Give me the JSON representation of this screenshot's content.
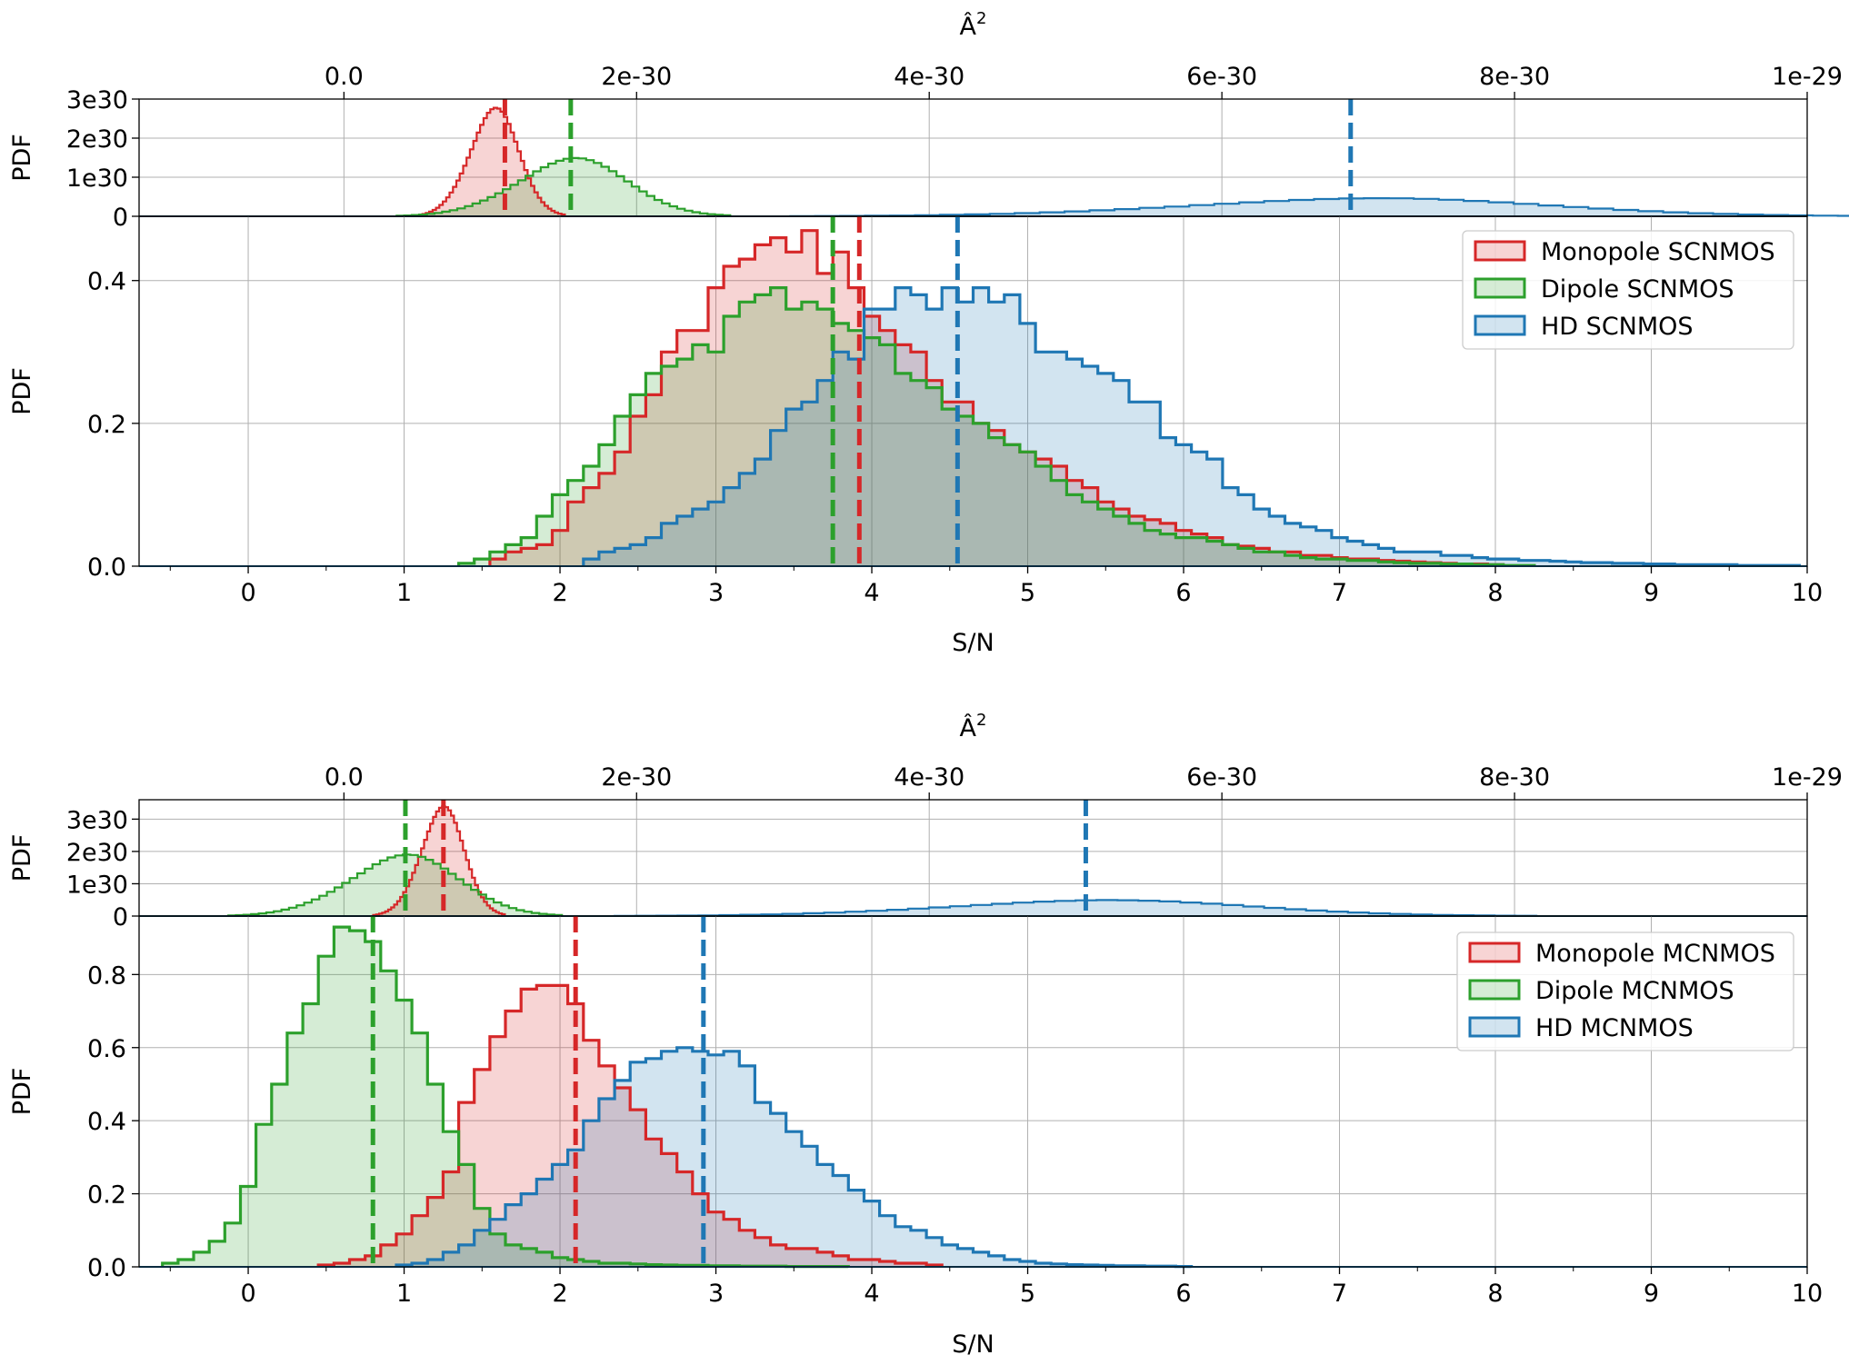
{
  "chart_data": [
    {
      "type": "histogram",
      "title": "",
      "top_xlabel": "Â²",
      "top_xlabel_base": "Â",
      "top_xlabel_sup": "2",
      "top_ylabel": "PDF",
      "top_xticks": [
        "0.0",
        "2e-30",
        "4e-30",
        "6e-30",
        "8e-30",
        "1e-29"
      ],
      "top_yticks": [
        "0",
        "1e30",
        "2e30",
        "3e30"
      ],
      "xlabel": "S/N",
      "ylabel": "PDF",
      "xticks": [
        "0",
        "1",
        "2",
        "3",
        "4",
        "5",
        "6",
        "7",
        "8",
        "9",
        "10"
      ],
      "yticks": [
        "0.0",
        "0.2",
        "0.4"
      ],
      "xlim": [
        -0.7,
        10
      ],
      "ylim": [
        0,
        0.49
      ],
      "top_xlim": [
        -1.4e-30,
        1e-29
      ],
      "top_ylim": [
        0,
        3e+30
      ],
      "grid": true,
      "legend_position": "upper right",
      "series": [
        {
          "name": "Monopole SCNMOS",
          "color": "#d62728",
          "median": 3.92,
          "top_median": 1.1e-30,
          "top_center": 1e-30,
          "top_peak": 2.7e+30,
          "top_width": 1.7e-31,
          "x": [
            1.6,
            1.7,
            1.8,
            1.9,
            2.0,
            2.1,
            2.2,
            2.3,
            2.4,
            2.5,
            2.6,
            2.7,
            2.8,
            2.9,
            3.0,
            3.1,
            3.2,
            3.3,
            3.4,
            3.5,
            3.6,
            3.7,
            3.8,
            3.9,
            4.0,
            4.1,
            4.2,
            4.3,
            4.4,
            4.5,
            4.6,
            4.7,
            4.8,
            4.9,
            5.0,
            5.1,
            5.2,
            5.3,
            5.4,
            5.5,
            5.6,
            5.7,
            5.8,
            5.9,
            6.0,
            6.1,
            6.2,
            6.3,
            6.4,
            6.5,
            6.6,
            6.7,
            6.8,
            6.9,
            7.0,
            7.1,
            7.2,
            7.3,
            7.4,
            7.5,
            7.6,
            7.7,
            7.8,
            7.9,
            8.0
          ],
          "values": [
            0.01,
            0.02,
            0.025,
            0.03,
            0.05,
            0.09,
            0.11,
            0.13,
            0.16,
            0.21,
            0.24,
            0.3,
            0.33,
            0.33,
            0.39,
            0.42,
            0.43,
            0.45,
            0.46,
            0.44,
            0.47,
            0.41,
            0.44,
            0.39,
            0.35,
            0.33,
            0.31,
            0.3,
            0.26,
            0.23,
            0.23,
            0.2,
            0.19,
            0.17,
            0.16,
            0.15,
            0.14,
            0.12,
            0.11,
            0.09,
            0.08,
            0.07,
            0.065,
            0.06,
            0.05,
            0.045,
            0.04,
            0.03,
            0.028,
            0.025,
            0.02,
            0.02,
            0.015,
            0.015,
            0.012,
            0.01,
            0.01,
            0.008,
            0.007,
            0.006,
            0.005,
            0.004,
            0.003,
            0.003,
            0.002
          ]
        },
        {
          "name": "Dipole SCNMOS",
          "color": "#2ca02c",
          "median": 3.75,
          "top_median": 1.55e-30,
          "top_center": 1.5e-30,
          "top_peak": 1.45e+30,
          "top_width": 3.8e-31,
          "x": [
            1.4,
            1.5,
            1.6,
            1.7,
            1.8,
            1.9,
            2.0,
            2.1,
            2.2,
            2.3,
            2.4,
            2.5,
            2.6,
            2.7,
            2.8,
            2.9,
            3.0,
            3.1,
            3.2,
            3.3,
            3.4,
            3.5,
            3.6,
            3.7,
            3.8,
            3.9,
            4.0,
            4.1,
            4.2,
            4.3,
            4.4,
            4.5,
            4.6,
            4.7,
            4.8,
            4.9,
            5.0,
            5.1,
            5.2,
            5.3,
            5.4,
            5.5,
            5.6,
            5.7,
            5.8,
            5.9,
            6.0,
            6.1,
            6.2,
            6.3,
            6.4,
            6.5,
            6.6,
            6.7,
            6.8,
            6.9,
            7.0,
            7.1,
            7.2,
            7.3,
            7.4,
            7.5,
            7.6,
            7.7,
            7.8,
            7.9,
            8.0,
            8.1,
            8.2
          ],
          "values": [
            0.004,
            0.01,
            0.02,
            0.03,
            0.04,
            0.07,
            0.1,
            0.12,
            0.14,
            0.17,
            0.21,
            0.24,
            0.27,
            0.28,
            0.29,
            0.31,
            0.3,
            0.35,
            0.37,
            0.38,
            0.39,
            0.36,
            0.37,
            0.36,
            0.34,
            0.33,
            0.32,
            0.31,
            0.27,
            0.26,
            0.25,
            0.22,
            0.21,
            0.2,
            0.18,
            0.17,
            0.16,
            0.14,
            0.12,
            0.1,
            0.09,
            0.08,
            0.07,
            0.06,
            0.05,
            0.045,
            0.04,
            0.04,
            0.035,
            0.03,
            0.025,
            0.02,
            0.02,
            0.015,
            0.012,
            0.01,
            0.01,
            0.008,
            0.008,
            0.006,
            0.005,
            0.004,
            0.004,
            0.003,
            0.003,
            0.002,
            0.002,
            0.001,
            0.001
          ]
        },
        {
          "name": "HD SCNMOS",
          "color": "#1f77b4",
          "median": 4.55,
          "top_median": 6.88e-30,
          "top_center": 6.8e-30,
          "top_peak": 4.5e+29,
          "top_width": 1.25e-30,
          "x": [
            2.2,
            2.3,
            2.4,
            2.5,
            2.6,
            2.7,
            2.8,
            2.9,
            3.0,
            3.1,
            3.2,
            3.3,
            3.4,
            3.5,
            3.6,
            3.7,
            3.8,
            3.9,
            4.0,
            4.1,
            4.2,
            4.3,
            4.4,
            4.5,
            4.6,
            4.7,
            4.8,
            4.9,
            5.0,
            5.1,
            5.2,
            5.3,
            5.4,
            5.5,
            5.6,
            5.7,
            5.8,
            5.9,
            6.0,
            6.1,
            6.2,
            6.3,
            6.4,
            6.5,
            6.6,
            6.7,
            6.8,
            6.9,
            7.0,
            7.1,
            7.2,
            7.3,
            7.4,
            7.5,
            7.6,
            7.7,
            7.8,
            7.9,
            8.0,
            8.1,
            8.2,
            8.3,
            8.4,
            8.5,
            8.6,
            8.7,
            8.8,
            8.9,
            9.0,
            9.1,
            9.2,
            9.3,
            9.4,
            9.5,
            9.6,
            9.7,
            9.8,
            9.9
          ],
          "values": [
            0.01,
            0.02,
            0.025,
            0.03,
            0.04,
            0.06,
            0.07,
            0.08,
            0.09,
            0.11,
            0.13,
            0.15,
            0.19,
            0.22,
            0.23,
            0.26,
            0.3,
            0.29,
            0.36,
            0.36,
            0.39,
            0.38,
            0.36,
            0.39,
            0.37,
            0.39,
            0.37,
            0.38,
            0.34,
            0.3,
            0.3,
            0.29,
            0.28,
            0.27,
            0.26,
            0.23,
            0.23,
            0.18,
            0.17,
            0.16,
            0.15,
            0.11,
            0.1,
            0.08,
            0.07,
            0.06,
            0.055,
            0.05,
            0.04,
            0.035,
            0.03,
            0.025,
            0.02,
            0.02,
            0.02,
            0.015,
            0.015,
            0.012,
            0.01,
            0.01,
            0.008,
            0.008,
            0.007,
            0.006,
            0.005,
            0.005,
            0.004,
            0.004,
            0.003,
            0.003,
            0.002,
            0.002,
            0.002,
            0.002,
            0.001,
            0.001,
            0.001,
            0.001
          ]
        }
      ]
    },
    {
      "type": "histogram",
      "title": "",
      "top_xlabel": "Â²",
      "top_xlabel_base": "Â",
      "top_xlabel_sup": "2",
      "top_ylabel": "PDF",
      "top_xticks": [
        "0.0",
        "2e-30",
        "4e-30",
        "6e-30",
        "8e-30",
        "1e-29"
      ],
      "top_yticks": [
        "0",
        "1e30",
        "2e30",
        "3e30"
      ],
      "xlabel": "S/N",
      "ylabel": "PDF",
      "xticks": [
        "0",
        "1",
        "2",
        "3",
        "4",
        "5",
        "6",
        "7",
        "8",
        "9",
        "10"
      ],
      "yticks": [
        "0.0",
        "0.2",
        "0.4",
        "0.6",
        "0.8"
      ],
      "xlim": [
        -0.7,
        10
      ],
      "ylim": [
        0,
        0.96
      ],
      "top_xlim": [
        -1.4e-30,
        1e-29
      ],
      "top_ylim": [
        0,
        3.6e+30
      ],
      "grid": true,
      "legend_position": "upper right",
      "series": [
        {
          "name": "Monopole MCNMOS",
          "color": "#d62728",
          "median": 2.1,
          "top_median": 6.8e-31,
          "top_center": 6.5e-31,
          "top_peak": 3.3e+30,
          "top_width": 1.5e-31,
          "x": [
            0.5,
            0.6,
            0.7,
            0.8,
            0.9,
            1.0,
            1.1,
            1.2,
            1.3,
            1.4,
            1.5,
            1.6,
            1.7,
            1.8,
            1.9,
            2.0,
            2.1,
            2.2,
            2.3,
            2.4,
            2.5,
            2.6,
            2.7,
            2.8,
            2.9,
            3.0,
            3.1,
            3.2,
            3.3,
            3.4,
            3.5,
            3.6,
            3.7,
            3.8,
            3.9,
            4.0,
            4.1,
            4.2,
            4.3,
            4.4
          ],
          "values": [
            0.005,
            0.01,
            0.02,
            0.03,
            0.06,
            0.09,
            0.14,
            0.19,
            0.26,
            0.45,
            0.54,
            0.63,
            0.7,
            0.76,
            0.77,
            0.77,
            0.72,
            0.62,
            0.55,
            0.49,
            0.43,
            0.35,
            0.31,
            0.26,
            0.2,
            0.15,
            0.13,
            0.1,
            0.08,
            0.06,
            0.05,
            0.05,
            0.04,
            0.03,
            0.02,
            0.02,
            0.015,
            0.01,
            0.01,
            0.005
          ]
        },
        {
          "name": "Dipole MCNMOS",
          "color": "#2ca02c",
          "median": 0.8,
          "top_median": 4.2e-31,
          "top_center": 3.5e-31,
          "top_peak": 1.85e+30,
          "top_width": 3.8e-31,
          "x": [
            -0.5,
            -0.4,
            -0.3,
            -0.2,
            -0.1,
            0.0,
            0.1,
            0.2,
            0.3,
            0.4,
            0.5,
            0.6,
            0.7,
            0.8,
            0.9,
            1.0,
            1.1,
            1.2,
            1.3,
            1.4,
            1.5,
            1.6,
            1.7,
            1.8,
            1.9,
            2.0,
            2.1,
            2.2,
            2.3,
            2.4,
            2.5,
            2.6,
            2.7,
            2.8,
            2.9,
            3.0,
            3.1,
            3.2,
            3.3,
            3.4,
            3.5,
            3.6,
            3.7,
            3.8
          ],
          "values": [
            0.01,
            0.02,
            0.04,
            0.07,
            0.12,
            0.22,
            0.39,
            0.5,
            0.64,
            0.72,
            0.85,
            0.93,
            0.92,
            0.89,
            0.81,
            0.73,
            0.64,
            0.5,
            0.37,
            0.28,
            0.16,
            0.09,
            0.06,
            0.05,
            0.04,
            0.025,
            0.02,
            0.015,
            0.01,
            0.01,
            0.008,
            0.006,
            0.005,
            0.004,
            0.004,
            0.003,
            0.003,
            0.002,
            0.002,
            0.002,
            0.001,
            0.001,
            0.001,
            0.001
          ]
        },
        {
          "name": "HD MCNMOS",
          "color": "#1f77b4",
          "median": 2.92,
          "top_median": 5.07e-30,
          "top_center": 5e-30,
          "top_peak": 4.8e+29,
          "top_width": 1.05e-30,
          "x": [
            1.0,
            1.1,
            1.2,
            1.3,
            1.4,
            1.5,
            1.6,
            1.7,
            1.8,
            1.9,
            2.0,
            2.1,
            2.2,
            2.3,
            2.4,
            2.5,
            2.6,
            2.7,
            2.8,
            2.9,
            3.0,
            3.1,
            3.2,
            3.3,
            3.4,
            3.5,
            3.6,
            3.7,
            3.8,
            3.9,
            4.0,
            4.1,
            4.2,
            4.3,
            4.4,
            4.5,
            4.6,
            4.7,
            4.8,
            4.9,
            5.0,
            5.1,
            5.2,
            5.3,
            5.4,
            5.5,
            5.6,
            5.7,
            5.8,
            5.9,
            6.0
          ],
          "values": [
            0.005,
            0.01,
            0.02,
            0.04,
            0.06,
            0.1,
            0.13,
            0.17,
            0.2,
            0.24,
            0.28,
            0.32,
            0.4,
            0.46,
            0.51,
            0.56,
            0.57,
            0.59,
            0.6,
            0.59,
            0.58,
            0.59,
            0.55,
            0.45,
            0.42,
            0.37,
            0.33,
            0.28,
            0.25,
            0.21,
            0.18,
            0.14,
            0.11,
            0.1,
            0.08,
            0.06,
            0.05,
            0.04,
            0.03,
            0.02,
            0.015,
            0.01,
            0.008,
            0.006,
            0.005,
            0.004,
            0.003,
            0.003,
            0.002,
            0.002,
            0.001
          ]
        }
      ]
    }
  ]
}
